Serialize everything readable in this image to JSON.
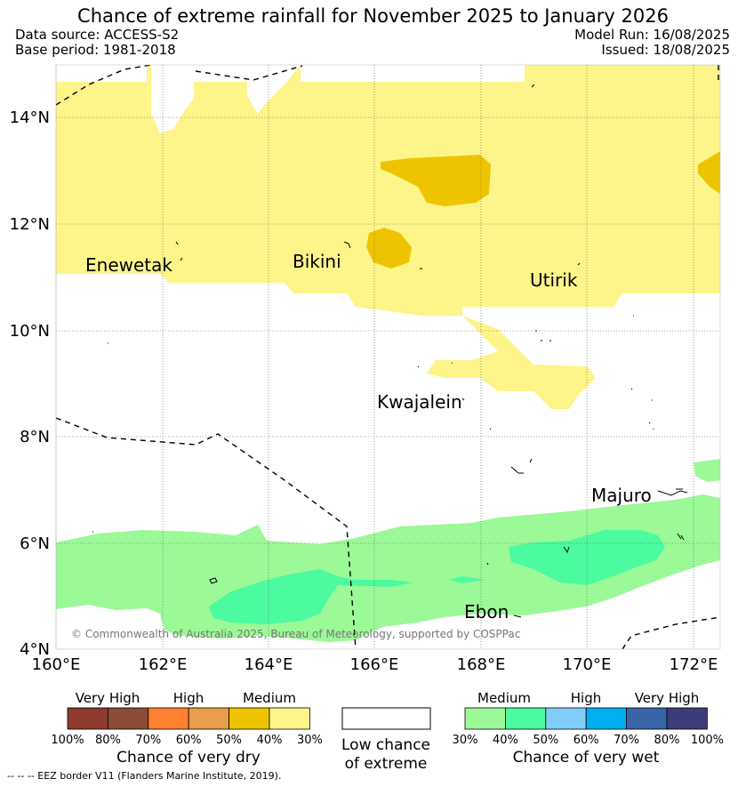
{
  "header": {
    "title": "Chance of extreme rainfall for November 2025 to January 2026",
    "data_source": "Data source: ACCESS-S2",
    "base_period": "Base period: 1981-2018",
    "model_run": "Model Run: 16/08/2025",
    "issued": "Issued: 18/08/2025"
  },
  "map": {
    "lat_labels": [
      "14°N",
      "12°N",
      "10°N",
      "8°N",
      "6°N",
      "4°N"
    ],
    "lon_labels": [
      "160°E",
      "162°E",
      "164°E",
      "166°E",
      "168°E",
      "170°E",
      "172°E"
    ],
    "places": [
      "Enewetak",
      "Bikini",
      "Utirik",
      "Kwajalein",
      "Majuro",
      "Ebon"
    ],
    "credit": "© Commonwealth of Australia 2025, Bureau of Meteorology, supported by COSPPac",
    "eez_note": "-- -- -- EEZ border V11 (Flanders Marine Institute, 2019)."
  },
  "legend": {
    "dry": {
      "groups": [
        "Very High",
        "High",
        "Medium"
      ],
      "colors": [
        "#8e3a2f",
        "#8c4a39",
        "#fd8130",
        "#ea9d4c",
        "#eec400",
        "#fdf48a"
      ],
      "ticks": [
        "100%",
        "80%",
        "70%",
        "60%",
        "50%",
        "40%",
        "30%"
      ],
      "caption": "Chance of very dry"
    },
    "low": {
      "line1": "Low chance",
      "line2": "of extreme"
    },
    "wet": {
      "groups": [
        "Medium",
        "High",
        "Very High"
      ],
      "colors": [
        "#9bf997",
        "#4cfa9f",
        "#80cdf9",
        "#00aff0",
        "#3765a7",
        "#3c3c79"
      ],
      "ticks": [
        "30%",
        "40%",
        "50%",
        "60%",
        "70%",
        "80%",
        "100%"
      ],
      "caption": "Chance of very wet"
    }
  }
}
